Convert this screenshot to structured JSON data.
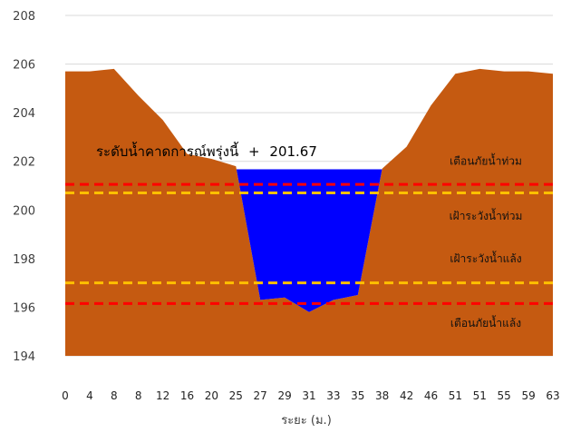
{
  "chart_data": {
    "type": "area",
    "xlabel": "ระยะ (ม.)",
    "ylabel": "",
    "ylim": [
      194,
      208
    ],
    "yticks": [
      194,
      196,
      198,
      200,
      202,
      204,
      206,
      208
    ],
    "categories": [
      "0",
      "4",
      "8",
      "8",
      "12",
      "16",
      "20",
      "25",
      "27",
      "29",
      "31",
      "33",
      "35",
      "38",
      "42",
      "46",
      "51",
      "51",
      "55",
      "59",
      "63"
    ],
    "grid": true,
    "series": [
      {
        "name": "",
        "kind": "ground",
        "color": "#c55a11",
        "values": [
          205.7,
          205.7,
          205.8,
          204.7,
          203.7,
          202.3,
          202.1,
          201.8,
          196.3,
          196.4,
          195.8,
          196.3,
          196.5,
          201.7,
          202.6,
          204.3,
          205.6,
          205.8,
          205.7,
          205.7,
          205.6
        ]
      },
      {
        "name": "",
        "kind": "water",
        "color": "#0000ff",
        "level": 201.67
      }
    ],
    "thresholds": [
      {
        "label": "เตือนภัยน้ำท่วม",
        "value": 201.05,
        "color": "#ff0000",
        "label_value": 202.0
      },
      {
        "label": "เฝ้าระวังน้ำท่วม",
        "value": 200.7,
        "color": "#ffc000",
        "label_value": 199.75
      },
      {
        "label": "เฝ้าระวังน้ำแล้ง",
        "value": 197.0,
        "color": "#ffc000",
        "label_value": 198.0
      },
      {
        "label": "เตือนภัยน้ำแล้ง",
        "value": 196.15,
        "color": "#ff0000",
        "label_value": 195.35
      }
    ],
    "forecast": {
      "label": "ระดับน้ำคาดการณ์พรุ่งนี้",
      "separator": "+",
      "value": "201.67",
      "color": "#000000"
    }
  }
}
